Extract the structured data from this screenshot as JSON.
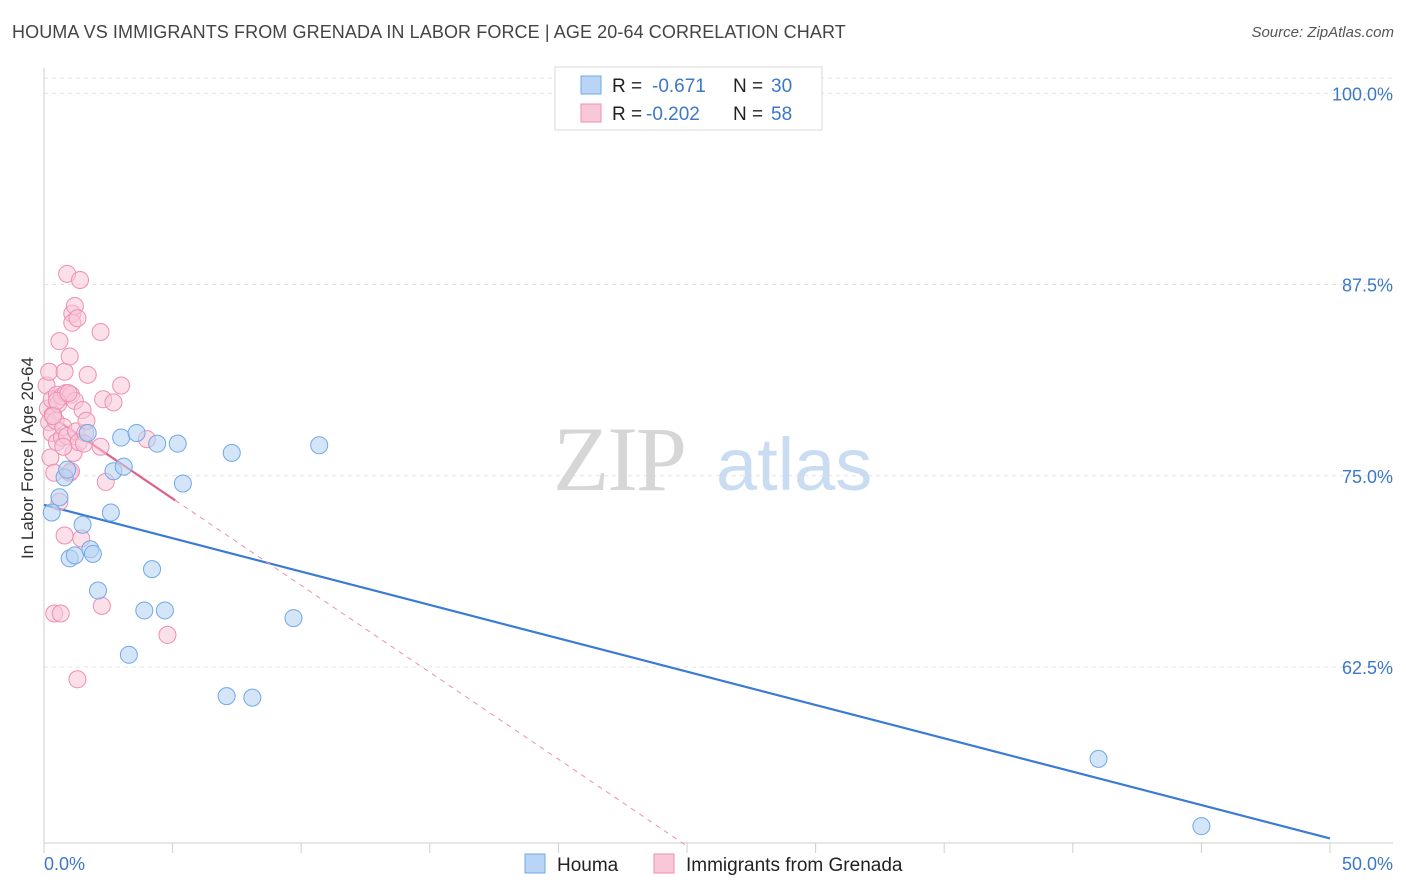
{
  "title": "HOUMA VS IMMIGRANTS FROM GRENADA IN LABOR FORCE | AGE 20-64 CORRELATION CHART",
  "source": "Source: ZipAtlas.com",
  "watermark": {
    "part1": "ZIP",
    "part2": "atlas"
  },
  "colors": {
    "houma": "#6fa8e8",
    "houma_fill": "#b9d4f4",
    "houma_line": "#3a7bd5",
    "grenada": "#ee8fb0",
    "grenada_fill": "#f8c7d8",
    "grenada_line": "#e0608a",
    "axis_label": "#3c78c8",
    "grid": "#e3e3e3"
  },
  "legend": {
    "rows": [
      {
        "r_label": "R = ",
        "r_value": "-0.671",
        "n_label": "N = ",
        "n_value": "30"
      },
      {
        "r_label": "R = ",
        "r_value": "-0.202",
        "n_label": "N = ",
        "n_value": "58"
      }
    ]
  },
  "bottom_legend": {
    "houma": "Houma",
    "grenada": "Immigrants from Grenada"
  },
  "chart_data": {
    "type": "scatter",
    "xlabel": "",
    "ylabel": "In Labor Force | Age 20-64",
    "xlim": [
      0,
      50
    ],
    "ylim": [
      51,
      101
    ],
    "x_tick_labels": {
      "min": "0.0%",
      "max": "50.0%"
    },
    "y_ticks": [
      62.5,
      75.0,
      87.5,
      100.0
    ],
    "y_tick_labels": [
      "62.5%",
      "75.0%",
      "87.5%",
      "100.0%"
    ],
    "grid": true,
    "legend_position": "top-center",
    "series": [
      {
        "name": "Houma",
        "R": -0.671,
        "N": 30,
        "trend": {
          "x0": 0,
          "y0": 73.1,
          "x1": 50,
          "y1": 51.3
        },
        "points": [
          [
            0.3,
            72.6
          ],
          [
            0.6,
            73.6
          ],
          [
            0.8,
            74.9
          ],
          [
            0.9,
            75.4
          ],
          [
            1.0,
            69.6
          ],
          [
            1.2,
            69.8
          ],
          [
            1.5,
            71.8
          ],
          [
            1.7,
            77.8
          ],
          [
            1.8,
            70.2
          ],
          [
            1.9,
            69.9
          ],
          [
            2.1,
            67.5
          ],
          [
            2.6,
            72.6
          ],
          [
            2.7,
            75.3
          ],
          [
            3.0,
            77.5
          ],
          [
            3.1,
            75.6
          ],
          [
            3.3,
            63.3
          ],
          [
            3.6,
            77.8
          ],
          [
            3.9,
            66.2
          ],
          [
            4.2,
            68.9
          ],
          [
            4.4,
            77.1
          ],
          [
            4.7,
            66.2
          ],
          [
            5.2,
            77.1
          ],
          [
            5.4,
            74.5
          ],
          [
            7.1,
            60.6
          ],
          [
            7.3,
            76.5
          ],
          [
            8.1,
            60.5
          ],
          [
            9.7,
            65.7
          ],
          [
            10.7,
            77.0
          ],
          [
            41.0,
            56.5
          ],
          [
            45.0,
            52.1
          ]
        ]
      },
      {
        "name": "Immigrants from Grenada",
        "R": -0.202,
        "N": 58,
        "trend": {
          "x0": 0,
          "y0": 79.2,
          "x1": 5.1,
          "y1": 73.4
        },
        "trend_extended": {
          "x0": 5.1,
          "y0": 73.4,
          "x1": 25.0,
          "y1": 50.8
        },
        "points": [
          [
            0.1,
            80.9
          ],
          [
            0.15,
            79.4
          ],
          [
            0.2,
            78.5
          ],
          [
            0.2,
            81.8
          ],
          [
            0.25,
            76.2
          ],
          [
            0.3,
            77.8
          ],
          [
            0.3,
            80.0
          ],
          [
            0.35,
            79.0
          ],
          [
            0.4,
            75.2
          ],
          [
            0.4,
            66.0
          ],
          [
            0.45,
            78.6
          ],
          [
            0.5,
            80.3
          ],
          [
            0.5,
            77.2
          ],
          [
            0.55,
            79.7
          ],
          [
            0.6,
            83.8
          ],
          [
            0.6,
            73.3
          ],
          [
            0.65,
            66.0
          ],
          [
            0.7,
            80.2
          ],
          [
            0.7,
            77.5
          ],
          [
            0.75,
            78.2
          ],
          [
            0.8,
            71.1
          ],
          [
            0.8,
            81.8
          ],
          [
            0.85,
            80.4
          ],
          [
            0.9,
            77.6
          ],
          [
            0.9,
            88.2
          ],
          [
            1.0,
            82.8
          ],
          [
            1.0,
            75.2
          ],
          [
            1.05,
            80.3
          ],
          [
            1.1,
            85.6
          ],
          [
            1.1,
            85.0
          ],
          [
            1.15,
            76.5
          ],
          [
            1.2,
            79.9
          ],
          [
            1.2,
            86.1
          ],
          [
            1.25,
            77.9
          ],
          [
            1.3,
            61.7
          ],
          [
            1.3,
            85.3
          ],
          [
            1.35,
            77.2
          ],
          [
            1.4,
            87.8
          ],
          [
            1.45,
            70.9
          ],
          [
            1.5,
            79.3
          ],
          [
            1.6,
            77.8
          ],
          [
            1.65,
            78.6
          ],
          [
            1.7,
            81.6
          ],
          [
            2.2,
            76.9
          ],
          [
            2.2,
            84.4
          ],
          [
            2.25,
            66.5
          ],
          [
            2.3,
            80.0
          ],
          [
            2.4,
            74.6
          ],
          [
            2.7,
            79.8
          ],
          [
            3.0,
            80.9
          ],
          [
            4.0,
            77.4
          ],
          [
            4.8,
            64.6
          ],
          [
            0.5,
            79.9
          ],
          [
            0.95,
            80.4
          ],
          [
            1.55,
            77.1
          ],
          [
            0.35,
            78.9
          ],
          [
            0.75,
            76.9
          ],
          [
            1.05,
            75.3
          ]
        ]
      }
    ]
  }
}
